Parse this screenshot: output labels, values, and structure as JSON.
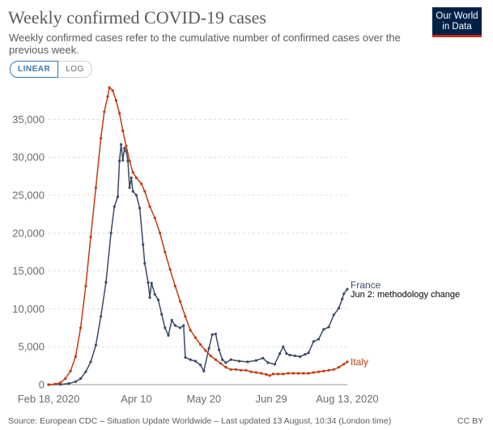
{
  "header": {
    "title": "Weekly confirmed COVID-19 cases",
    "subtitle": "Weekly confirmed cases refer to the cumulative number of confirmed cases over the previous week.",
    "logo_line1": "Our World",
    "logo_line2": "in Data"
  },
  "controls": {
    "linear_label": "LINEAR",
    "log_label": "LOG",
    "active": "linear"
  },
  "colors": {
    "France": "#3b4a63",
    "Italy": "#c13a10",
    "accent": "#3b75b4",
    "logo_bg": "#002147",
    "logo_stripe": "#ce261e"
  },
  "footer": {
    "source": "Source: European CDC – Situation Update Worldwide – Last updated 13 August, 10:34 (London time)",
    "license": "CC BY"
  },
  "chart_data": {
    "type": "line",
    "title": "Weekly confirmed COVID-19 cases",
    "x_start": "2020-02-18",
    "x_end": "2020-08-13",
    "x_tick_labels": [
      "Feb 18, 2020",
      "Apr 10",
      "May 20",
      "Jun 29",
      "Aug 13, 2020"
    ],
    "x_tick_dates": [
      "2020-02-18",
      "2020-04-10",
      "2020-05-20",
      "2020-06-29",
      "2020-08-13"
    ],
    "ylim": [
      0,
      39000
    ],
    "y_ticks": [
      0,
      5000,
      10000,
      15000,
      20000,
      25000,
      30000,
      35000
    ],
    "y_tick_labels": [
      "0",
      "5,000",
      "10,000",
      "15,000",
      "20,000",
      "25,000",
      "30,000",
      "35,000"
    ],
    "grid": true,
    "legend": "inline-right",
    "annotation": {
      "series": "France",
      "text": "Jun 2: methodology change"
    },
    "series": [
      {
        "name": "France",
        "points": [
          [
            "2020-02-18",
            0
          ],
          [
            "2020-02-25",
            30
          ],
          [
            "2020-03-01",
            150
          ],
          [
            "2020-03-05",
            400
          ],
          [
            "2020-03-08",
            800
          ],
          [
            "2020-03-11",
            1700
          ],
          [
            "2020-03-14",
            3000
          ],
          [
            "2020-03-17",
            5200
          ],
          [
            "2020-03-20",
            9000
          ],
          [
            "2020-03-23",
            13500
          ],
          [
            "2020-03-26",
            20000
          ],
          [
            "2020-03-28",
            23500
          ],
          [
            "2020-03-30",
            24800
          ],
          [
            "2020-03-31",
            29500
          ],
          [
            "2020-04-01",
            31700
          ],
          [
            "2020-04-02",
            29600
          ],
          [
            "2020-04-03",
            31200
          ],
          [
            "2020-04-04",
            30800
          ],
          [
            "2020-04-05",
            29500
          ],
          [
            "2020-04-06",
            26000
          ],
          [
            "2020-04-07",
            27300
          ],
          [
            "2020-04-08",
            25500
          ],
          [
            "2020-04-10",
            25000
          ],
          [
            "2020-04-12",
            23300
          ],
          [
            "2020-04-14",
            18500
          ],
          [
            "2020-04-15",
            16000
          ],
          [
            "2020-04-17",
            13500
          ],
          [
            "2020-04-18",
            11500
          ],
          [
            "2020-04-19",
            13400
          ],
          [
            "2020-04-21",
            11900
          ],
          [
            "2020-04-23",
            11200
          ],
          [
            "2020-04-25",
            9300
          ],
          [
            "2020-04-27",
            7500
          ],
          [
            "2020-04-29",
            6500
          ],
          [
            "2020-05-01",
            8500
          ],
          [
            "2020-05-03",
            7800
          ],
          [
            "2020-05-06",
            7500
          ],
          [
            "2020-05-08",
            7800
          ],
          [
            "2020-05-09",
            3600
          ],
          [
            "2020-05-12",
            3300
          ],
          [
            "2020-05-15",
            3100
          ],
          [
            "2020-05-18",
            2600
          ],
          [
            "2020-05-20",
            1800
          ],
          [
            "2020-05-23",
            4800
          ],
          [
            "2020-05-25",
            6600
          ],
          [
            "2020-05-27",
            6700
          ],
          [
            "2020-05-29",
            4600
          ],
          [
            "2020-05-31",
            3300
          ],
          [
            "2020-06-02",
            2900
          ],
          [
            "2020-06-05",
            3300
          ],
          [
            "2020-06-10",
            3100
          ],
          [
            "2020-06-15",
            3000
          ],
          [
            "2020-06-20",
            3200
          ],
          [
            "2020-06-24",
            3500
          ],
          [
            "2020-06-27",
            2900
          ],
          [
            "2020-07-01",
            2700
          ],
          [
            "2020-07-04",
            4100
          ],
          [
            "2020-07-06",
            5000
          ],
          [
            "2020-07-08",
            4100
          ],
          [
            "2020-07-10",
            3900
          ],
          [
            "2020-07-13",
            3800
          ],
          [
            "2020-07-16",
            3700
          ],
          [
            "2020-07-19",
            4000
          ],
          [
            "2020-07-21",
            4200
          ],
          [
            "2020-07-24",
            5700
          ],
          [
            "2020-07-27",
            6000
          ],
          [
            "2020-07-30",
            7300
          ],
          [
            "2020-08-02",
            7600
          ],
          [
            "2020-08-05",
            9200
          ],
          [
            "2020-08-08",
            10100
          ],
          [
            "2020-08-10",
            11300
          ],
          [
            "2020-08-11",
            12000
          ],
          [
            "2020-08-13",
            12600
          ]
        ]
      },
      {
        "name": "Italy",
        "points": [
          [
            "2020-02-18",
            0
          ],
          [
            "2020-02-22",
            70
          ],
          [
            "2020-02-25",
            250
          ],
          [
            "2020-02-28",
            800
          ],
          [
            "2020-03-02",
            1800
          ],
          [
            "2020-03-05",
            3700
          ],
          [
            "2020-03-08",
            7500
          ],
          [
            "2020-03-11",
            13000
          ],
          [
            "2020-03-14",
            19500
          ],
          [
            "2020-03-17",
            26000
          ],
          [
            "2020-03-20",
            32500
          ],
          [
            "2020-03-22",
            36000
          ],
          [
            "2020-03-24",
            38000
          ],
          [
            "2020-03-25",
            39200
          ],
          [
            "2020-03-27",
            38800
          ],
          [
            "2020-03-29",
            37500
          ],
          [
            "2020-03-31",
            35800
          ],
          [
            "2020-04-02",
            33500
          ],
          [
            "2020-04-04",
            31500
          ],
          [
            "2020-04-06",
            29500
          ],
          [
            "2020-04-08",
            28000
          ],
          [
            "2020-04-10",
            27300
          ],
          [
            "2020-04-13",
            26500
          ],
          [
            "2020-04-15",
            25500
          ],
          [
            "2020-04-18",
            23500
          ],
          [
            "2020-04-21",
            22000
          ],
          [
            "2020-04-24",
            20000
          ],
          [
            "2020-04-27",
            17500
          ],
          [
            "2020-04-30",
            15200
          ],
          [
            "2020-05-03",
            13000
          ],
          [
            "2020-05-06",
            11000
          ],
          [
            "2020-05-09",
            9000
          ],
          [
            "2020-05-12",
            7200
          ],
          [
            "2020-05-15",
            6200
          ],
          [
            "2020-05-18",
            5300
          ],
          [
            "2020-05-21",
            4500
          ],
          [
            "2020-05-24",
            3800
          ],
          [
            "2020-05-27",
            3300
          ],
          [
            "2020-05-30",
            2800
          ],
          [
            "2020-06-02",
            2300
          ],
          [
            "2020-06-05",
            2000
          ],
          [
            "2020-06-08",
            2000
          ],
          [
            "2020-06-11",
            1900
          ],
          [
            "2020-06-14",
            1900
          ],
          [
            "2020-06-17",
            1700
          ],
          [
            "2020-06-20",
            1600
          ],
          [
            "2020-06-23",
            1500
          ],
          [
            "2020-06-26",
            1350
          ],
          [
            "2020-06-28",
            1200
          ],
          [
            "2020-06-30",
            1400
          ],
          [
            "2020-07-03",
            1400
          ],
          [
            "2020-07-06",
            1400
          ],
          [
            "2020-07-09",
            1500
          ],
          [
            "2020-07-12",
            1500
          ],
          [
            "2020-07-15",
            1500
          ],
          [
            "2020-07-18",
            1500
          ],
          [
            "2020-07-21",
            1500
          ],
          [
            "2020-07-24",
            1600
          ],
          [
            "2020-07-27",
            1700
          ],
          [
            "2020-07-30",
            1800
          ],
          [
            "2020-08-02",
            1900
          ],
          [
            "2020-08-05",
            2000
          ],
          [
            "2020-08-08",
            2300
          ],
          [
            "2020-08-11",
            2700
          ],
          [
            "2020-08-13",
            3000
          ]
        ]
      }
    ]
  }
}
